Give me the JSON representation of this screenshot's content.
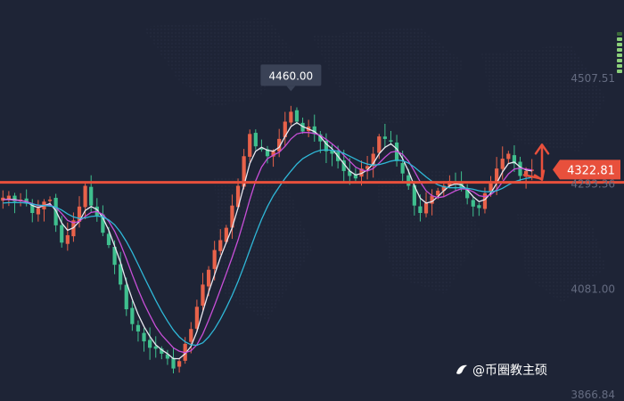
{
  "chart_data": {
    "type": "candlestick",
    "title": "",
    "xlabel": "",
    "ylabel": "",
    "ylim": [
      3866.84,
      4507.51
    ],
    "y_ticks": [
      {
        "value": 4507.51,
        "label": "4507.51"
      },
      {
        "value": 4293.36,
        "label": "4293.36"
      },
      {
        "value": 4081.0,
        "label": "4081.00"
      },
      {
        "value": 3866.84,
        "label": "3866.84"
      }
    ],
    "current_price": {
      "value": 4322.81,
      "label": "4322.81"
    },
    "support_line": {
      "value": 4293.36
    },
    "high_marker": {
      "value": 4460.0,
      "label": "4460.00"
    },
    "grid": false,
    "colors": {
      "up": "#e8624a",
      "down": "#3fbf8e",
      "ma_white": "#e8e8f0",
      "ma_magenta": "#c84fd8",
      "ma_cyan": "#2fb8d8",
      "support": "#e8503c",
      "background": "#1e2436",
      "tag": "#e8503c"
    },
    "close_series": [
      4266,
      4270,
      4258,
      4262,
      4254,
      4235,
      4245,
      4258,
      4262,
      4210,
      4175,
      4190,
      4220,
      4248,
      4290,
      4250,
      4230,
      4195,
      4170,
      4130,
      4090,
      4040,
      4010,
      3995,
      3975,
      3962,
      3960,
      3950,
      3940,
      3920,
      3935,
      3970,
      4000,
      4045,
      4090,
      4120,
      4160,
      4180,
      4205,
      4250,
      4290,
      4350,
      4395,
      4370,
      4365,
      4350,
      4360,
      4385,
      4420,
      4440,
      4420,
      4400,
      4410,
      4395,
      4380,
      4360,
      4355,
      4340,
      4320,
      4310,
      4305,
      4325,
      4330,
      4355,
      4390,
      4385,
      4380,
      4340,
      4315,
      4290,
      4250,
      4235,
      4255,
      4270,
      4280,
      4290,
      4300,
      4295,
      4285,
      4265,
      4248,
      4245,
      4275,
      4295,
      4325,
      4345,
      4355,
      4335,
      4310,
      4320,
      4322.81
    ],
    "ma_fast": [
      4262,
      4263,
      4262,
      4260,
      4258,
      4250,
      4246,
      4250,
      4254,
      4240,
      4215,
      4200,
      4205,
      4218,
      4240,
      4248,
      4242,
      4225,
      4200,
      4168,
      4135,
      4095,
      4060,
      4030,
      4005,
      3985,
      3968,
      3958,
      3950,
      3940,
      3940,
      3950,
      3965,
      3995,
      4035,
      4075,
      4110,
      4145,
      4175,
      4205,
      4245,
      4290,
      4335,
      4360,
      4368,
      4362,
      4360,
      4368,
      4390,
      4410,
      4418,
      4410,
      4405,
      4400,
      4390,
      4375,
      4365,
      4350,
      4335,
      4320,
      4312,
      4315,
      4322,
      4335,
      4355,
      4368,
      4375,
      4365,
      4345,
      4320,
      4290,
      4265,
      4255,
      4258,
      4268,
      4280,
      4290,
      4294,
      4292,
      4282,
      4268,
      4258,
      4262,
      4275,
      4295,
      4318,
      4335,
      4338,
      4328,
      4322,
      4320
    ],
    "ma_mid": [
      4262,
      4262,
      4261,
      4260,
      4258,
      4254,
      4250,
      4250,
      4251,
      4246,
      4234,
      4220,
      4215,
      4218,
      4228,
      4236,
      4238,
      4232,
      4218,
      4198,
      4172,
      4142,
      4110,
      4080,
      4052,
      4028,
      4005,
      3988,
      3975,
      3962,
      3955,
      3952,
      3956,
      3968,
      3990,
      4018,
      4048,
      4080,
      4112,
      4145,
      4180,
      4220,
      4262,
      4300,
      4328,
      4345,
      4352,
      4358,
      4370,
      4385,
      4395,
      4398,
      4398,
      4396,
      4392,
      4384,
      4375,
      4365,
      4352,
      4340,
      4328,
      4322,
      4320,
      4325,
      4336,
      4348,
      4358,
      4360,
      4354,
      4340,
      4320,
      4298,
      4280,
      4270,
      4266,
      4268,
      4274,
      4280,
      4284,
      4283,
      4278,
      4270,
      4268,
      4272,
      4282,
      4298,
      4314,
      4324,
      4326,
      4324,
      4322
    ],
    "ma_slow": [
      4255,
      4256,
      4256,
      4256,
      4255,
      4253,
      4251,
      4250,
      4249,
      4247,
      4241,
      4233,
      4227,
      4224,
      4225,
      4228,
      4229,
      4227,
      4221,
      4211,
      4196,
      4177,
      4155,
      4131,
      4106,
      4082,
      4058,
      4036,
      4016,
      3998,
      3984,
      3974,
      3968,
      3967,
      3972,
      3984,
      4000,
      4020,
      4043,
      4068,
      4096,
      4127,
      4160,
      4192,
      4222,
      4248,
      4270,
      4288,
      4305,
      4320,
      4334,
      4345,
      4352,
      4358,
      4362,
      4363,
      4362,
      4360,
      4356,
      4350,
      4344,
      4338,
      4334,
      4332,
      4333,
      4336,
      4340,
      4342,
      4341,
      4336,
      4328,
      4318,
      4308,
      4299,
      4292,
      4288,
      4286,
      4286,
      4286,
      4285,
      4283,
      4280,
      4278,
      4278,
      4280,
      4285,
      4292,
      4298,
      4302,
      4305,
      4307
    ]
  },
  "watermark": {
    "text": "@币圈教主硕",
    "logo_icon": "bird-logo-icon"
  }
}
